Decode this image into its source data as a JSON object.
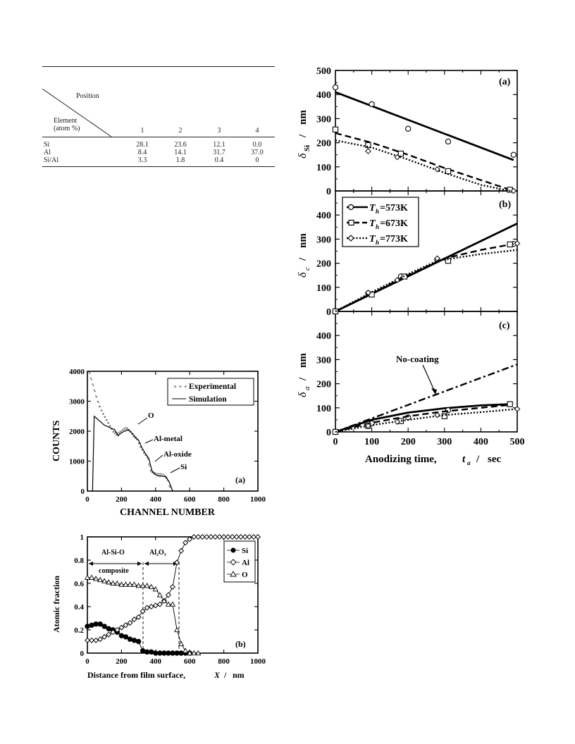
{
  "table": {
    "corner_top": "Position",
    "corner_bottom_1": "Element",
    "corner_bottom_2": "(atom %)",
    "positions": [
      "1",
      "2",
      "3",
      "4"
    ],
    "rows": [
      {
        "element": "Si",
        "values": [
          "28.1",
          "23.6",
          "12.1",
          "0.0"
        ]
      },
      {
        "element": "Al",
        "values": [
          "8.4",
          "14.1",
          "31.7",
          "37.0"
        ]
      },
      {
        "element": "Si/Al",
        "values": [
          "3.3",
          "1.8",
          "0.4",
          "0"
        ]
      }
    ]
  },
  "chart_data": [
    {
      "id": "right-panel-a",
      "type": "scatter",
      "panel_label": "(a)",
      "ylabel_main": "δ",
      "ylabel_sub": "Si",
      "ylabel_unit": "nm",
      "xlim": [
        0,
        500
      ],
      "ylim": [
        0,
        500
      ],
      "yticks": [
        "0",
        "100",
        "200",
        "300",
        "400",
        "500"
      ],
      "series": [
        {
          "marker": "circle",
          "points": [
            [
              0,
              430
            ],
            [
              100,
              360
            ],
            [
              200,
              258
            ],
            [
              310,
              205
            ],
            [
              490,
              150
            ]
          ],
          "line": [
            [
              0,
              410
            ],
            [
              490,
              128
            ]
          ],
          "style": "solid"
        },
        {
          "marker": "square",
          "points": [
            [
              0,
              255
            ],
            [
              90,
              190
            ],
            [
              180,
              155
            ],
            [
              310,
              82
            ],
            [
              480,
              5
            ]
          ],
          "line": [
            [
              0,
              240
            ],
            [
              100,
              200
            ],
            [
              200,
              150
            ],
            [
              300,
              95
            ],
            [
              400,
              45
            ],
            [
              480,
              5
            ]
          ],
          "style": "dash"
        },
        {
          "marker": "diamond",
          "points": [
            [
              90,
              165
            ],
            [
              170,
              140
            ],
            [
              280,
              90
            ],
            [
              490,
              0
            ]
          ],
          "line": [
            [
              0,
              210
            ],
            [
              100,
              180
            ],
            [
              200,
              130
            ],
            [
              300,
              75
            ],
            [
              400,
              25
            ],
            [
              480,
              0
            ]
          ],
          "style": "dot"
        }
      ]
    },
    {
      "id": "right-panel-b",
      "type": "scatter",
      "panel_label": "(b)",
      "ylabel_main": "δ",
      "ylabel_sub": "c",
      "ylabel_unit": "nm",
      "xlim": [
        0,
        500
      ],
      "ylim": [
        0,
        500
      ],
      "yticks": [
        "0",
        "100",
        "200",
        "300",
        "400"
      ],
      "legend": [
        {
          "label_T": "T",
          "label_sub": "h",
          "label_val": "=573K",
          "marker": "circle",
          "style": "solid"
        },
        {
          "label_T": "T",
          "label_sub": "h",
          "label_val": "=673K",
          "marker": "square",
          "style": "dash"
        },
        {
          "label_T": "T",
          "label_sub": "h",
          "label_val": "=773K",
          "marker": "diamond",
          "style": "dot"
        }
      ],
      "series": [
        {
          "marker": "circle",
          "points": [
            [
              0,
              0
            ],
            [
              90,
              75
            ],
            [
              180,
              145
            ],
            [
              280,
              215
            ],
            [
              490,
              280
            ]
          ],
          "line": [
            [
              0,
              0
            ],
            [
              500,
              365
            ]
          ],
          "style": "solid"
        },
        {
          "marker": "square",
          "points": [
            [
              0,
              0
            ],
            [
              100,
              70
            ],
            [
              190,
              145
            ],
            [
              310,
              210
            ],
            [
              480,
              278
            ]
          ],
          "line": [
            [
              0,
              0
            ],
            [
              100,
              75
            ],
            [
              200,
              150
            ],
            [
              300,
              220
            ],
            [
              400,
              255
            ],
            [
              490,
              280
            ]
          ],
          "style": "dash"
        },
        {
          "marker": "diamond",
          "points": [
            [
              90,
              78
            ],
            [
              170,
              130
            ],
            [
              280,
              220
            ],
            [
              500,
              282
            ]
          ],
          "line": [
            [
              0,
              0
            ],
            [
              100,
              80
            ],
            [
              200,
              155
            ],
            [
              280,
              210
            ],
            [
              400,
              238
            ],
            [
              500,
              255
            ]
          ],
          "style": "dot"
        }
      ]
    },
    {
      "id": "right-panel-c",
      "type": "scatter",
      "panel_label": "(c)",
      "ylabel_main": "δ",
      "ylabel_sub": "a",
      "ylabel_unit": "nm",
      "xlabel_main": "Anodizing time,",
      "xlabel_var": "t",
      "xlabel_sub": "a",
      "xlabel_unit": "sec",
      "xticks": [
        "0",
        "100",
        "200",
        "300",
        "400",
        "500"
      ],
      "yticks": [
        "0",
        "100",
        "200",
        "300",
        "400"
      ],
      "xlim": [
        0,
        500
      ],
      "ylim": [
        0,
        500
      ],
      "annotation": "No-coating",
      "series": [
        {
          "marker": "none",
          "line": [
            [
              0,
              0
            ],
            [
              500,
              280
            ]
          ],
          "style": "dashdot"
        },
        {
          "marker": "circle",
          "points": [
            [
              0,
              0
            ],
            [
              100,
              35
            ],
            [
              200,
              60
            ],
            [
              310,
              90
            ],
            [
              480,
              115
            ]
          ],
          "line": [
            [
              0,
              0
            ],
            [
              100,
              50
            ],
            [
              200,
              80
            ],
            [
              300,
              98
            ],
            [
              400,
              110
            ],
            [
              480,
              115
            ]
          ],
          "style": "solid"
        },
        {
          "marker": "square",
          "points": [
            [
              0,
              0
            ],
            [
              90,
              25
            ],
            [
              180,
              45
            ],
            [
              300,
              65
            ],
            [
              480,
              115
            ]
          ],
          "line": [
            [
              0,
              0
            ],
            [
              100,
              38
            ],
            [
              200,
              65
            ],
            [
              300,
              85
            ],
            [
              400,
              100
            ],
            [
              480,
              112
            ]
          ],
          "style": "dash"
        },
        {
          "marker": "diamond",
          "points": [
            [
              90,
              25
            ],
            [
              170,
              42
            ],
            [
              280,
              70
            ],
            [
              500,
              95
            ]
          ],
          "line": [
            [
              0,
              0
            ],
            [
              100,
              28
            ],
            [
              200,
              50
            ],
            [
              300,
              70
            ],
            [
              400,
              82
            ],
            [
              500,
              95
            ]
          ],
          "style": "dot"
        }
      ]
    },
    {
      "id": "left-panel-a",
      "type": "line",
      "panel_label": "(a)",
      "ylabel": "COUNTS",
      "xlabel": "CHANNEL NUMBER",
      "xticks": [
        "0",
        "200",
        "400",
        "600",
        "800",
        "1000"
      ],
      "yticks": [
        "0",
        "1000",
        "2000",
        "3000",
        "4000"
      ],
      "xlim": [
        0,
        1000
      ],
      "ylim": [
        0,
        4000
      ],
      "legend": [
        "Experimental",
        "Simulation"
      ],
      "annotations": [
        "O",
        "Al-metal",
        "Al-oxide",
        "Si"
      ],
      "series": [
        {
          "name": "Experimental",
          "x": [
            10,
            30,
            50,
            70,
            90,
            110,
            130,
            150,
            170,
            190,
            210,
            230,
            250,
            270,
            290,
            310,
            330,
            350,
            370,
            390,
            410,
            430,
            450,
            470,
            490
          ],
          "y": [
            4000,
            3600,
            3200,
            2850,
            2600,
            2400,
            2200,
            2000,
            1900,
            1950,
            2050,
            2100,
            2000,
            1850,
            1750,
            1500,
            1300,
            1150,
            700,
            600,
            550,
            550,
            520,
            400,
            0
          ]
        },
        {
          "name": "Simulation",
          "x": [
            30,
            40,
            60,
            80,
            100,
            120,
            140,
            160,
            180,
            200,
            220,
            240,
            260,
            280,
            300,
            320,
            340,
            360,
            380,
            400,
            420,
            440,
            460,
            480,
            500
          ],
          "y": [
            0,
            2500,
            2400,
            2300,
            2200,
            2150,
            2100,
            2050,
            1850,
            1950,
            2000,
            2050,
            1950,
            1800,
            1700,
            1450,
            1250,
            1100,
            650,
            550,
            500,
            500,
            480,
            300,
            0
          ]
        }
      ]
    },
    {
      "id": "left-panel-b",
      "type": "line",
      "panel_label": "(b)",
      "ylabel": "Atomic fraction",
      "xlabel_main": "Distance from film surface,",
      "xlabel_var": "X",
      "xlabel_unit": "nm",
      "xticks": [
        "0",
        "200",
        "400",
        "600",
        "800",
        "1000"
      ],
      "yticks": [
        "0",
        "0.2",
        "0.4",
        "0.6",
        "0.8",
        "1"
      ],
      "xlim": [
        0,
        1000
      ],
      "ylim": [
        0,
        1
      ],
      "region_labels": [
        "Al-Si-O",
        "composite",
        "Al₂O₃"
      ],
      "legend": [
        "Si",
        "Al",
        "O"
      ],
      "series": [
        {
          "name": "Si",
          "marker": "filled-circle",
          "x": [
            0,
            25,
            50,
            75,
            100,
            125,
            150,
            175,
            200,
            225,
            250,
            275,
            300,
            325,
            350,
            375,
            400,
            425,
            450,
            475,
            500,
            525,
            550,
            575,
            600
          ],
          "y": [
            0.23,
            0.24,
            0.25,
            0.25,
            0.23,
            0.21,
            0.2,
            0.18,
            0.15,
            0.14,
            0.12,
            0.11,
            0.1,
            0.02,
            0.01,
            0.01,
            0.0,
            0.0,
            0.0,
            0.0,
            0.0,
            0.0,
            0.0,
            0.0,
            0.0
          ]
        },
        {
          "name": "Al",
          "marker": "open-diamond",
          "x": [
            0,
            25,
            50,
            75,
            100,
            125,
            150,
            175,
            200,
            225,
            250,
            275,
            300,
            325,
            350,
            375,
            400,
            425,
            450,
            475,
            500,
            525,
            550,
            575,
            600,
            625,
            650,
            675,
            700,
            725,
            750,
            775,
            800,
            825,
            850,
            875,
            900,
            925,
            950,
            975,
            1000
          ],
          "y": [
            0.11,
            0.11,
            0.11,
            0.12,
            0.14,
            0.16,
            0.18,
            0.2,
            0.22,
            0.24,
            0.26,
            0.29,
            0.31,
            0.36,
            0.39,
            0.4,
            0.41,
            0.42,
            0.45,
            0.5,
            0.57,
            0.78,
            0.88,
            0.95,
            0.98,
            1.0,
            1.0,
            1.0,
            1.0,
            1.0,
            1.0,
            1.0,
            1.0,
            1.0,
            1.0,
            1.0,
            1.0,
            1.0,
            1.0,
            1.0,
            1.0
          ]
        },
        {
          "name": "O",
          "marker": "open-triangle",
          "x": [
            0,
            25,
            50,
            75,
            100,
            125,
            150,
            175,
            200,
            225,
            250,
            275,
            300,
            325,
            350,
            375,
            400,
            425,
            450,
            475,
            500,
            525,
            550,
            575,
            600,
            625,
            650
          ],
          "y": [
            0.65,
            0.65,
            0.64,
            0.63,
            0.62,
            0.61,
            0.6,
            0.6,
            0.59,
            0.59,
            0.59,
            0.59,
            0.58,
            0.58,
            0.58,
            0.57,
            0.55,
            0.5,
            0.45,
            0.42,
            0.42,
            0.2,
            0.08,
            0.02,
            0.0,
            0.0,
            0.0
          ]
        }
      ]
    }
  ]
}
